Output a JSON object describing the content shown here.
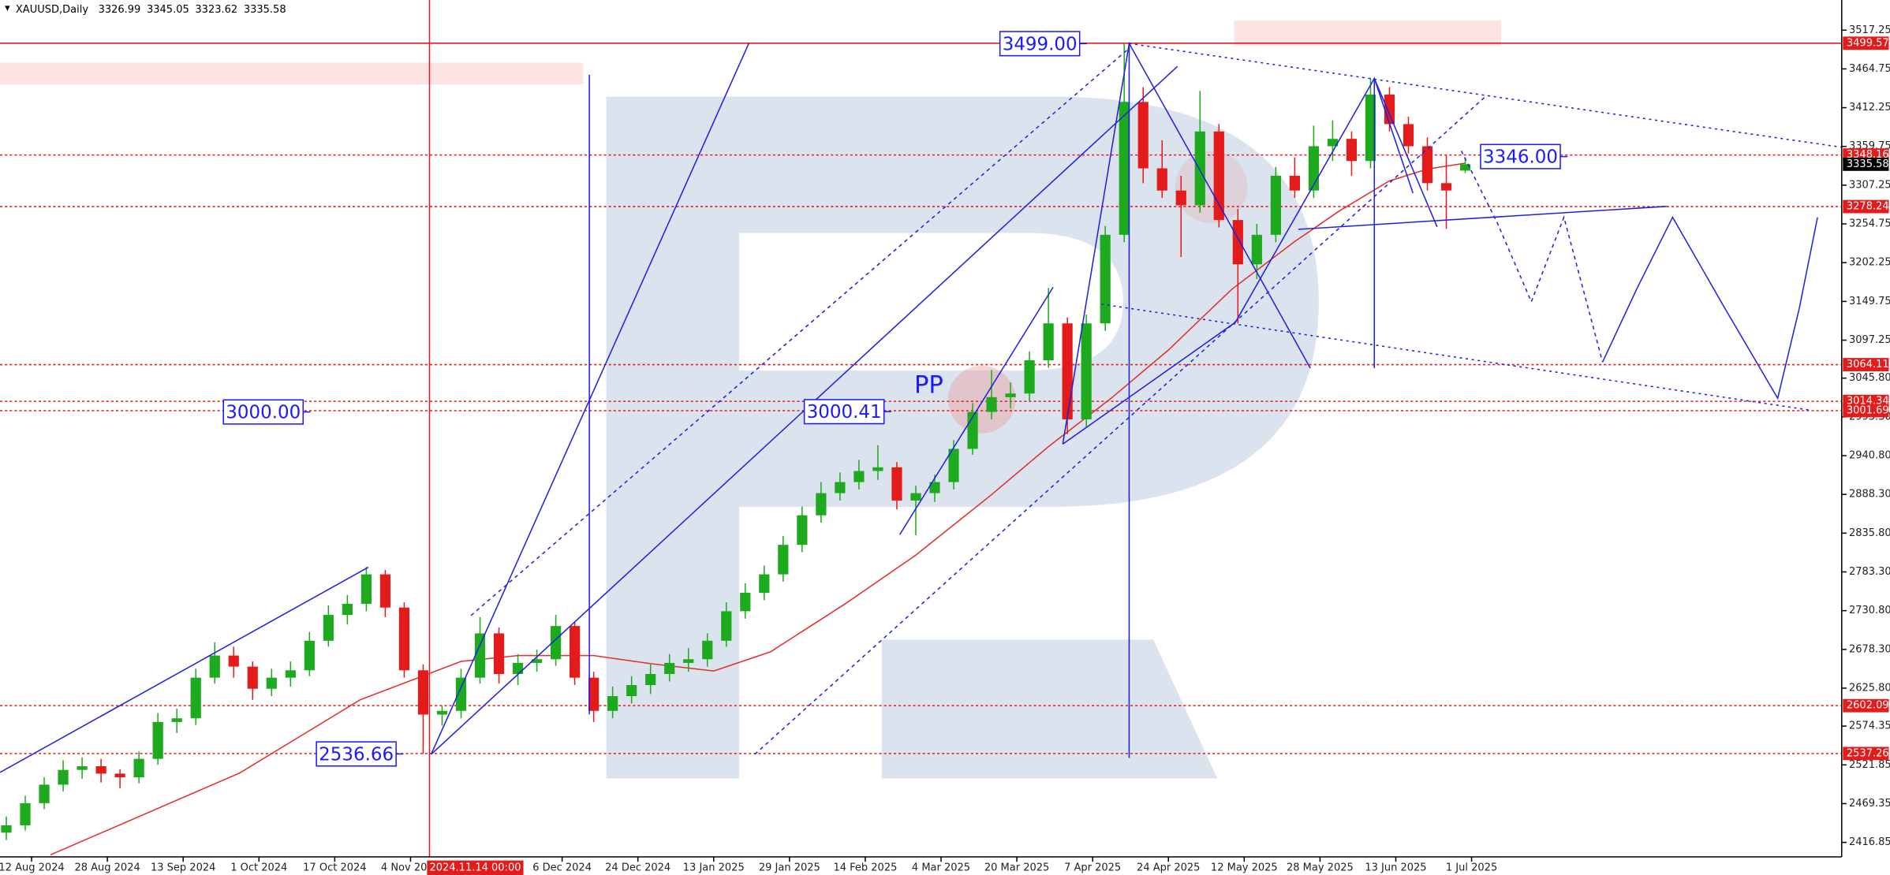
{
  "chart_data": {
    "type": "candlestick",
    "title": "XAUUSD,Daily",
    "header_ohlc": [
      3326.99,
      3345.05,
      3323.62,
      3335.58
    ],
    "xlim": [
      -1,
      290.6
    ],
    "ylim": [
      2397.2,
      3558.1
    ],
    "xticks": [
      {
        "value": 4,
        "label": "12 Aug 2024"
      },
      {
        "value": 16,
        "label": "28 Aug 2024"
      },
      {
        "value": 28,
        "label": "13 Sep 2024"
      },
      {
        "value": 40,
        "label": "1 Oct 2024"
      },
      {
        "value": 52,
        "label": "17 Oct 2024"
      },
      {
        "value": 64,
        "label": "4 Nov 2024"
      },
      {
        "value": 88,
        "label": "6 Dec 2024"
      },
      {
        "value": 100,
        "label": "24 Dec 2024"
      },
      {
        "value": 112,
        "label": "13 Jan 2025"
      },
      {
        "value": 124,
        "label": "29 Jan 2025"
      },
      {
        "value": 136,
        "label": "14 Feb 2025"
      },
      {
        "value": 148,
        "label": "4 Mar 2025"
      },
      {
        "value": 160,
        "label": "20 Mar 2025"
      },
      {
        "value": 172,
        "label": "7 Apr 2025"
      },
      {
        "value": 184,
        "label": "24 Apr 2025"
      },
      {
        "value": 196,
        "label": "12 May 2025"
      },
      {
        "value": 208,
        "label": "28 May 2025"
      },
      {
        "value": 220,
        "label": "13 Jun 2025"
      },
      {
        "value": 232,
        "label": "1 Jul 2025"
      }
    ],
    "cursor_x": {
      "value": 67,
      "label": "2024.11.14 00:00"
    },
    "yticks": [
      3517.25,
      3464.75,
      3412.25,
      3359.75,
      3307.25,
      3254.75,
      3202.25,
      3149.75,
      3097.25,
      {
        "value": 3045.8,
        "label": "3045.80"
      },
      {
        "value": 2993.3,
        "label": "2993.30"
      },
      {
        "value": 2940.8,
        "label": "2940.80"
      },
      {
        "value": 2888.3,
        "label": "2888.30"
      },
      {
        "value": 2835.8,
        "label": "2835.80"
      },
      {
        "value": 2783.3,
        "label": "2783.30"
      },
      {
        "value": 2730.8,
        "label": "2730.80"
      },
      {
        "value": 2678.3,
        "label": "2678.30"
      },
      {
        "value": 2625.8,
        "label": "2625.80"
      },
      2574.35,
      2521.85,
      2469.35,
      2416.85
    ],
    "up_color": "#1eaa1e",
    "down_color": "#e31b1b",
    "candles": [
      [
        0,
        2430,
        2452,
        2420,
        2440
      ],
      [
        3,
        2440,
        2480,
        2433,
        2470
      ],
      [
        6,
        2470,
        2505,
        2462,
        2495
      ],
      [
        9,
        2495,
        2528,
        2486,
        2515
      ],
      [
        12,
        2515,
        2532,
        2503,
        2520
      ],
      [
        15,
        2520,
        2530,
        2498,
        2510
      ],
      [
        18,
        2510,
        2516,
        2490,
        2505
      ],
      [
        21,
        2505,
        2540,
        2497,
        2530
      ],
      [
        24,
        2530,
        2592,
        2522,
        2580
      ],
      [
        27,
        2580,
        2598,
        2565,
        2585
      ],
      [
        30,
        2585,
        2652,
        2576,
        2640
      ],
      [
        33,
        2640,
        2688,
        2632,
        2670
      ],
      [
        36,
        2670,
        2682,
        2640,
        2655
      ],
      [
        39,
        2655,
        2662,
        2610,
        2625
      ],
      [
        42,
        2625,
        2652,
        2615,
        2640
      ],
      [
        45,
        2640,
        2662,
        2628,
        2650
      ],
      [
        48,
        2650,
        2702,
        2642,
        2690
      ],
      [
        51,
        2690,
        2738,
        2682,
        2725
      ],
      [
        54,
        2725,
        2752,
        2712,
        2740
      ],
      [
        57,
        2740,
        2790,
        2730,
        2780
      ],
      [
        60,
        2780,
        2786,
        2722,
        2735
      ],
      [
        63,
        2735,
        2742,
        2640,
        2650
      ],
      [
        66,
        2650,
        2658,
        2536.66,
        2590
      ],
      [
        69,
        2590,
        2602,
        2575,
        2595
      ],
      [
        72,
        2595,
        2652,
        2585,
        2640
      ],
      [
        75,
        2640,
        2722,
        2632,
        2700
      ],
      [
        78,
        2700,
        2708,
        2632,
        2645
      ],
      [
        81,
        2645,
        2672,
        2630,
        2660
      ],
      [
        84,
        2660,
        2678,
        2648,
        2665
      ],
      [
        87,
        2665,
        2725,
        2656,
        2710
      ],
      [
        90,
        2710,
        2716,
        2630,
        2640
      ],
      [
        93,
        2640,
        2648,
        2580,
        2595
      ],
      [
        96,
        2595,
        2628,
        2585,
        2615
      ],
      [
        99,
        2615,
        2642,
        2605,
        2630
      ],
      [
        102,
        2630,
        2658,
        2618,
        2645
      ],
      [
        105,
        2645,
        2672,
        2635,
        2660
      ],
      [
        108,
        2660,
        2680,
        2648,
        2665
      ],
      [
        111,
        2665,
        2700,
        2655,
        2690
      ],
      [
        114,
        2690,
        2742,
        2682,
        2730
      ],
      [
        117,
        2730,
        2768,
        2720,
        2755
      ],
      [
        120,
        2755,
        2792,
        2745,
        2780
      ],
      [
        123,
        2780,
        2832,
        2770,
        2820
      ],
      [
        126,
        2820,
        2872,
        2810,
        2860
      ],
      [
        129,
        2860,
        2905,
        2850,
        2890
      ],
      [
        132,
        2890,
        2918,
        2880,
        2905
      ],
      [
        135,
        2905,
        2935,
        2895,
        2920
      ],
      [
        138,
        2920,
        2955,
        2908,
        2925
      ],
      [
        141,
        2925,
        2932,
        2868,
        2880
      ],
      [
        144,
        2880,
        2900,
        2833,
        2890
      ],
      [
        147,
        2890,
        2915,
        2878,
        2905
      ],
      [
        150,
        2905,
        2962,
        2895,
        2950
      ],
      [
        153,
        2950,
        3012,
        2942,
        3000
      ],
      [
        156,
        3000,
        3057,
        2990,
        3020
      ],
      [
        159,
        3020,
        3040,
        3005,
        3025
      ],
      [
        162,
        3025,
        3082,
        3015,
        3070
      ],
      [
        165,
        3070,
        3168,
        3060,
        3120
      ],
      [
        168,
        3120,
        3128,
        2970,
        2990
      ],
      [
        171,
        2990,
        3132,
        2980,
        3120
      ],
      [
        174,
        3120,
        3252,
        3110,
        3240
      ],
      [
        177,
        3240,
        3499,
        3230,
        3420
      ],
      [
        180,
        3420,
        3440,
        3310,
        3330
      ],
      [
        183,
        3330,
        3368,
        3290,
        3300
      ],
      [
        186,
        3300,
        3320,
        3210,
        3280
      ],
      [
        189,
        3280,
        3435,
        3270,
        3380
      ],
      [
        192,
        3380,
        3390,
        3250,
        3260
      ],
      [
        195,
        3260,
        3275,
        3120,
        3200
      ],
      [
        198,
        3200,
        3255,
        3180,
        3240
      ],
      [
        201,
        3240,
        3332,
        3230,
        3320
      ],
      [
        204,
        3320,
        3345,
        3290,
        3300
      ],
      [
        207,
        3300,
        3388,
        3290,
        3360
      ],
      [
        210,
        3360,
        3395,
        3340,
        3370
      ],
      [
        213,
        3370,
        3380,
        3320,
        3340
      ],
      [
        216,
        3340,
        3452,
        3330,
        3430
      ],
      [
        219,
        3430,
        3440,
        3380,
        3390
      ],
      [
        222,
        3390,
        3400,
        3350,
        3360
      ],
      [
        225,
        3360,
        3372,
        3300,
        3310
      ],
      [
        228,
        3310,
        3348,
        3248,
        3300
      ],
      [
        231,
        3326.99,
        3345.05,
        3323.62,
        3335.58
      ]
    ],
    "ma": {
      "color": "#e0302b",
      "x": [
        7,
        37,
        56,
        72,
        81,
        93,
        102,
        112,
        121,
        133,
        144,
        156,
        165,
        175,
        184,
        194,
        204,
        211,
        219,
        225,
        231
      ],
      "values": [
        2400,
        2511,
        2610,
        2662,
        2670,
        2670,
        2659,
        2649,
        2675,
        2741,
        2806,
        2888,
        2953,
        3019,
        3084,
        3166,
        3231,
        3272,
        3313,
        3329,
        3337
      ]
    },
    "level_color": "#e31b1b",
    "levels": [
      {
        "value": 3499.57,
        "style": "solid"
      },
      {
        "value": 3348.16,
        "style": "dotted"
      },
      {
        "value": 3278.24,
        "style": "dotted"
      },
      {
        "value": 3064.11,
        "style": "dotted"
      },
      {
        "value": 3014.34,
        "style": "dotted"
      },
      {
        "value": 3001.69,
        "style": "dotted"
      },
      {
        "value": 2602.09,
        "style": "dotted"
      },
      {
        "value": 2537.26,
        "style": "dotted"
      }
    ],
    "last_price": 3335.58,
    "annotation_color": "#1a1aff",
    "annotations": [
      {
        "value": 3499,
        "label": "3499.00"
      },
      {
        "value": 3346,
        "label": "3346.00"
      },
      {
        "value": 3000,
        "label": "3000.00"
      },
      3000.41,
      2536.66
    ],
    "pattern_label": "PP"
  }
}
